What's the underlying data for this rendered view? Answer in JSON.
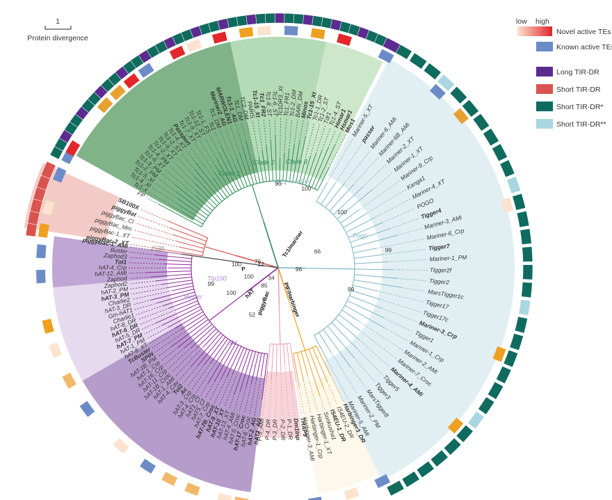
{
  "scale_bar": {
    "value": "1",
    "label": "Protein divergence"
  },
  "legend": {
    "gradient": {
      "low": "low",
      "high": "high",
      "label": "Novel active TEs",
      "from": "#fbe3cf",
      "to": "#e2262a"
    },
    "known": {
      "label": "Known active TEs",
      "color": "#6b8cc7"
    },
    "types": [
      {
        "label": "Long TIR-DR",
        "color": "#5b2b8f"
      },
      {
        "label": "Short TIR-DR",
        "color": "#d9534f"
      },
      {
        "label": "Short TIR-DR*",
        "color": "#0f6b5e"
      },
      {
        "label": "Short TIR-DR**",
        "color": "#a9d6e0"
      }
    ]
  },
  "superfamilies": [
    {
      "label": "Tc1/mariner",
      "color": "#2e8b57"
    },
    {
      "label": "PIF/Harbinger",
      "color": "#f0a020"
    },
    {
      "label": "piggyBac",
      "color": "#d9534f"
    },
    {
      "label": "hAT",
      "color": "#7b3fa0"
    },
    {
      "label": "P",
      "color": "#e8a0b0"
    }
  ],
  "clades": [
    {
      "label": "Clade 1"
    },
    {
      "label": "Clade 2"
    },
    {
      "label": "Clade 3"
    },
    {
      "label": "TC1"
    },
    {
      "label": "Mariner"
    },
    {
      "label": "Pogo"
    },
    {
      "label": "Ac"
    },
    {
      "label": "Buster"
    },
    {
      "label": "Tip100"
    },
    {
      "label": "IS30"
    }
  ],
  "bootstrap": [
    "90",
    "100",
    "66",
    "99",
    "76",
    "100",
    "12",
    "96",
    "99",
    "100",
    "34",
    "100",
    "85",
    "99",
    "52",
    "100"
  ],
  "tips": [
    "Mariner-5_XT",
    "passer",
    "Mariner-6_AMi",
    "Mariner-6B_AMi",
    "Mariner-2_XT",
    "Mariner-1_XT",
    "Mariner-9_Crp",
    "Kanga1",
    "Mariner-4_XT",
    "POGO",
    "Tigger4",
    "Mariner-3_AMi",
    "Mariner-6_Crp",
    "Tigger7",
    "Mariner-1_PM",
    "Tigger2f",
    "Tigger2",
    "MarsTigger1c",
    "Tigger17",
    "Tigger17c",
    "Mariner-3_Crp",
    "Tigger1",
    "Mariner-1_Crp",
    "Mariner-2_AMi",
    "Mariner-7_Croc",
    "Mariner-4_AMi",
    "Tigger5",
    "Tigger3",
    "MarsTigger8",
    "Mariner-2_PM",
    "Mariner-5_AMi",
    "Harbinger3_DR",
    "IS4EU-2_DR",
    "IS4EU-1_DR",
    "Sonkusha1",
    "Harbinger-1_XT",
    "Harbinger-1_Crp",
    "Harbinger-3_AMi",
    "THAP9",
    "Dm1tnp",
    "P-1_DR",
    "P-2_DR",
    "P-3_DR",
    "P-4_DR",
    "P-5_AMi",
    "hAT1_AG",
    "hAT-2_AG",
    "hAT-6_Croc",
    "hAT-17_Croc",
    "hAT-5_Croc",
    "hAT-4_AMi",
    "hAT-13_XT",
    "hAT-10_XT",
    "hAT-9_XT",
    "hAT-7B_Croc",
    "hAT-7_Crp",
    "hAT5_Cf",
    "hAT1_Cf",
    "hAT-4_Crp",
    "hAT-3_Crp",
    "Ac",
    "Tol2",
    "hAT-4_Cav",
    "hAT-1_AMi",
    "hAT-1B_Croc",
    "hAT-11_Crp",
    "hAT-16_Crp",
    "hAT-1_Crp",
    "hAT-1B_PM",
    "SPIN",
    "TcBuster",
    "hAT-8_XT",
    "hAT-1_PM",
    "hAT-7_PM",
    "hAT-5_DR",
    "hAT-6_DR",
    "hAT-8_DR",
    "Charlie1",
    "Gm-hAT1",
    "hAT-3_DR",
    "Charlie2",
    "hAT-3_PM",
    "hAT-2_PM",
    "Zaphod2",
    "Zaphod",
    "hAT-12_AMi",
    "hAT-4_Crp",
    "Tol1",
    "Zaphod3",
    "Buster",
    "piggyBac-1_AMi",
    "piggyBac-2_XT",
    "piggyBac-1_XT",
    "piggyBac_Mm",
    "piggyBac_Cl",
    "piggyBat",
    "SB100X",
    "FP",
    "Tc1-X",
    "Tc1-4_Xl",
    "Tc1-5_Xl",
    "Tc1-2_PM",
    "Tc1-3_PM",
    "Tc1-6_XT",
    "Tc1-4_PM",
    "Tc1-2_XT",
    "Tc1-9_XT",
    "Tc1-2_ST",
    "Tc1-4_XT",
    "Passport",
    "Tc1-7_XT",
    "Tc1-9_XT",
    "Tc1-12_ST",
    "Tc1-1_FS",
    "Tc1",
    "Tc1_DM",
    "Mariner2_AG",
    "MARWOLEN1",
    "Tc1-1_AG",
    "Tc1_DM",
    "TC2_DM",
    "PARIS",
    "Tc1-15_Xt",
    "Tc1_FR2",
    "Tc1-8_ST",
    "Tc1-6_ST",
    "Tc1DR3_Xt",
    "Tc1_FR1",
    "Tc1-2_DM",
    "BARI_DM",
    "Minos",
    "Tc1-15_Xt",
    "Tc1-1_DR",
    "Tc1-2_ST",
    "Tdr1",
    "Tc1-4_ST",
    "Himar1",
    "Hsmar1",
    "Mos1"
  ]
}
